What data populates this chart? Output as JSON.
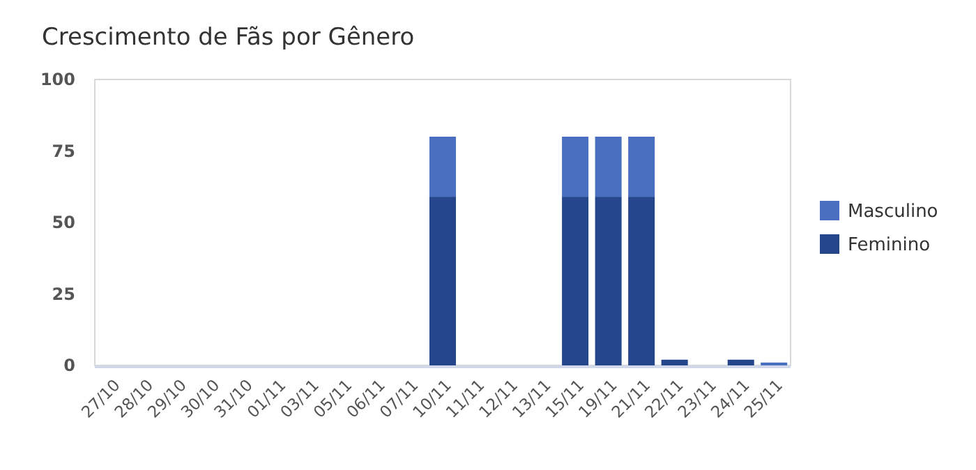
{
  "chart_data": {
    "type": "bar",
    "title": "Crescimento de Fãs por Gênero",
    "stacked": true,
    "categories": [
      "27/10",
      "28/10",
      "29/10",
      "30/10",
      "31/10",
      "01/11",
      "03/11",
      "05/11",
      "06/11",
      "07/11",
      "10/11",
      "11/11",
      "12/11",
      "13/11",
      "15/11",
      "19/11",
      "21/11",
      "22/11",
      "23/11",
      "24/11",
      "25/11"
    ],
    "series": [
      {
        "name": "Feminino",
        "color": "#25468a",
        "values": [
          0,
          0,
          0,
          0,
          0,
          0,
          0,
          0,
          0,
          0,
          59,
          0,
          0,
          0,
          59,
          59,
          59,
          2,
          0,
          2,
          0
        ]
      },
      {
        "name": "Masculino",
        "color": "#4a6fc0",
        "values": [
          0,
          0,
          0,
          0,
          0,
          0,
          0,
          0,
          0,
          0,
          21,
          0,
          0,
          0,
          21,
          21,
          21,
          0,
          0,
          0,
          1
        ]
      }
    ],
    "ylim": [
      0,
      100
    ],
    "yticks": [
      0,
      25,
      50,
      75,
      100
    ],
    "grid": false,
    "legend": "right"
  }
}
